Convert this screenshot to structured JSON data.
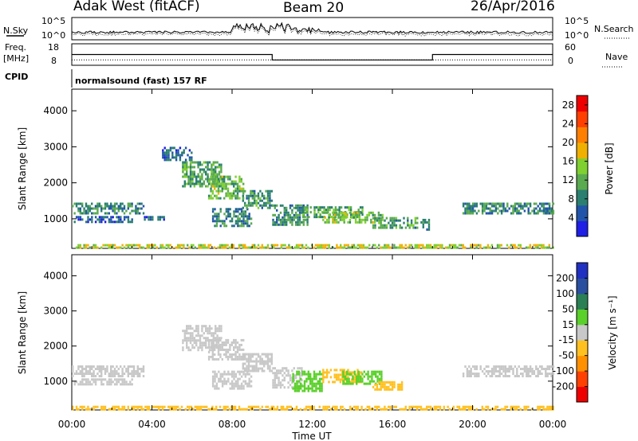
{
  "header": {
    "station": "Adak West (fitACF)",
    "beam": "Beam 20",
    "date": "26/Apr/2016"
  },
  "panels": {
    "nsky_label": "N.Sky",
    "nsearch_label": "N.Search",
    "freq_label_1": "Freq.",
    "freq_label_2": "[MHz]",
    "nave_label": "Nave",
    "cpid_label": "CPID",
    "cpid_text": "normalsound (fast) 157 RF",
    "noise_ticks_left": [
      "10^5",
      "10^0"
    ],
    "noise_ticks_right": [
      "10^5",
      "10^0"
    ],
    "freq_ticks": [
      "18",
      "8"
    ],
    "nave_ticks": [
      "60",
      "0"
    ]
  },
  "colors": {
    "power": [
      "#1f1fe6",
      "#2255aa",
      "#2a7f70",
      "#5aaa50",
      "#7fd030",
      "#f0b000",
      "#ff8000",
      "#ff4000",
      "#ee0000"
    ],
    "velocity": [
      "#ee0000",
      "#ff4000",
      "#ff9000",
      "#ffc020",
      "#c8c8c8",
      "#5ad02a",
      "#2a7f55",
      "#2a4f9f",
      "#2030c0"
    ]
  },
  "chart_data": [
    {
      "type": "heatmap",
      "title": "Power",
      "xlabel": "Time UT",
      "ylabel": "Slant Range [km]",
      "x_ticks": [
        "00:00",
        "04:00",
        "08:00",
        "12:00",
        "16:00",
        "20:00",
        "00:00"
      ],
      "y_ticks": [
        "1000",
        "2000",
        "3000",
        "4000"
      ],
      "ylim": [
        180,
        4600
      ],
      "xlim_hours": [
        0,
        24
      ],
      "colorbar": {
        "label": "Power [dB]",
        "ticks": [
          "4",
          "8",
          "12",
          "16",
          "20",
          "24",
          "28"
        ],
        "range": [
          0,
          30
        ]
      },
      "regions": [
        {
          "t": [
            0.0,
            3.6
          ],
          "r": [
            1150,
            1450
          ],
          "value": 9
        },
        {
          "t": [
            0.1,
            3.0
          ],
          "r": [
            920,
            1080
          ],
          "value": 6
        },
        {
          "t": [
            3.6,
            4.6
          ],
          "r": [
            980,
            1080
          ],
          "value": 6
        },
        {
          "t": [
            4.5,
            6.0
          ],
          "r": [
            2650,
            3000
          ],
          "value": 6
        },
        {
          "t": [
            5.5,
            7.5
          ],
          "r": [
            1900,
            2600
          ],
          "value": 11
        },
        {
          "t": [
            6.8,
            8.6
          ],
          "r": [
            1600,
            2200
          ],
          "value": 13
        },
        {
          "t": [
            7.0,
            9.0
          ],
          "r": [
            800,
            1300
          ],
          "value": 8
        },
        {
          "t": [
            8.5,
            10.0
          ],
          "r": [
            1300,
            1800
          ],
          "value": 10
        },
        {
          "t": [
            10.0,
            11.8
          ],
          "r": [
            850,
            1400
          ],
          "value": 9
        },
        {
          "t": [
            11.5,
            14.5
          ],
          "r": [
            1050,
            1350
          ],
          "value": 11
        },
        {
          "t": [
            12.5,
            15.5
          ],
          "r": [
            900,
            1200
          ],
          "value": 13
        },
        {
          "t": [
            15.0,
            17.2
          ],
          "r": [
            780,
            1050
          ],
          "value": 10
        },
        {
          "t": [
            17.4,
            17.8
          ],
          "r": [
            700,
            1000
          ],
          "value": 8
        },
        {
          "t": [
            19.5,
            24.0
          ],
          "r": [
            1150,
            1450
          ],
          "value": 9
        },
        {
          "t": [
            0.0,
            24.0
          ],
          "r": [
            180,
            300
          ],
          "value": 16
        }
      ]
    },
    {
      "type": "heatmap",
      "title": "Velocity",
      "xlabel": "Time UT",
      "ylabel": "Slant Range [km]",
      "x_ticks": [
        "00:00",
        "04:00",
        "08:00",
        "12:00",
        "16:00",
        "20:00",
        "00:00"
      ],
      "y_ticks": [
        "1000",
        "2000",
        "3000",
        "4000"
      ],
      "ylim": [
        180,
        4600
      ],
      "xlim_hours": [
        0,
        24
      ],
      "colorbar": {
        "label": "Velocity [m s⁻¹]",
        "ticks": [
          "-200",
          "-100",
          "-50",
          "-15",
          "15",
          "50",
          "100",
          "200"
        ]
      },
      "regions": [
        {
          "t": [
            0.0,
            3.6
          ],
          "r": [
            1150,
            1450
          ],
          "value": 0
        },
        {
          "t": [
            0.1,
            3.0
          ],
          "r": [
            920,
            1080
          ],
          "value": 0
        },
        {
          "t": [
            5.5,
            7.5
          ],
          "r": [
            1900,
            2600
          ],
          "value": 0
        },
        {
          "t": [
            6.8,
            8.6
          ],
          "r": [
            1600,
            2200
          ],
          "value": 0
        },
        {
          "t": [
            7.0,
            9.0
          ],
          "r": [
            800,
            1300
          ],
          "value": 0
        },
        {
          "t": [
            8.5,
            10.0
          ],
          "r": [
            1300,
            1800
          ],
          "value": 0
        },
        {
          "t": [
            10.0,
            11.5
          ],
          "r": [
            850,
            1400
          ],
          "value": 0
        },
        {
          "t": [
            11.0,
            12.5
          ],
          "r": [
            700,
            1300
          ],
          "value": 40
        },
        {
          "t": [
            12.5,
            14.5
          ],
          "r": [
            950,
            1350
          ],
          "value": -30
        },
        {
          "t": [
            13.5,
            15.5
          ],
          "r": [
            900,
            1300
          ],
          "value": 40
        },
        {
          "t": [
            15.0,
            16.5
          ],
          "r": [
            780,
            1000
          ],
          "value": -40
        },
        {
          "t": [
            19.5,
            24.0
          ],
          "r": [
            1150,
            1450
          ],
          "value": 0
        },
        {
          "t": [
            0.0,
            24.0
          ],
          "r": [
            180,
            300
          ],
          "value": -20
        }
      ]
    }
  ],
  "time_series": {
    "freq_mhz": [
      {
        "t": [
          0,
          10
        ],
        "v": 13
      },
      {
        "t": [
          10,
          18
        ],
        "v": 10.5
      },
      {
        "t": [
          18,
          24
        ],
        "v": 13
      }
    ],
    "nave": [
      {
        "t": [
          0,
          24
        ],
        "v": 15
      }
    ]
  }
}
